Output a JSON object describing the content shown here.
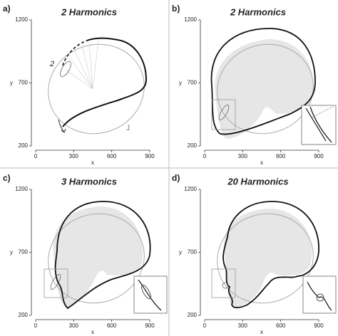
{
  "chart_data": [
    {
      "type": "outline",
      "panel": "a)",
      "title": "2 Harmonics",
      "xlabel": "x",
      "ylabel": "y",
      "xlim": [
        0,
        900
      ],
      "ylim": [
        200,
        1200
      ],
      "xticks": [
        0,
        300,
        600,
        900
      ],
      "yticks": [
        200,
        700,
        1200
      ],
      "annotations": [
        "2",
        "1"
      ]
    },
    {
      "type": "outline",
      "panel": "b)",
      "title": "2 Harmonics",
      "xlabel": "x",
      "ylabel": "y",
      "xlim": [
        0,
        900
      ],
      "ylim": [
        200,
        1200
      ],
      "xticks": [
        0,
        300,
        600,
        900
      ],
      "yticks": [
        200,
        700,
        1200
      ]
    },
    {
      "type": "outline",
      "panel": "c)",
      "title": "3 Harmonics",
      "xlabel": "x",
      "ylabel": "y",
      "xlim": [
        0,
        900
      ],
      "ylim": [
        200,
        1200
      ],
      "xticks": [
        0,
        300,
        600,
        900
      ],
      "yticks": [
        200,
        700,
        1200
      ]
    },
    {
      "type": "outline",
      "panel": "d)",
      "title": "20 Harmonics",
      "xlabel": "x",
      "ylabel": "y",
      "xlim": [
        0,
        900
      ],
      "ylim": [
        200,
        1200
      ],
      "xticks": [
        0,
        300,
        600,
        900
      ],
      "yticks": [
        200,
        700,
        1200
      ]
    }
  ]
}
